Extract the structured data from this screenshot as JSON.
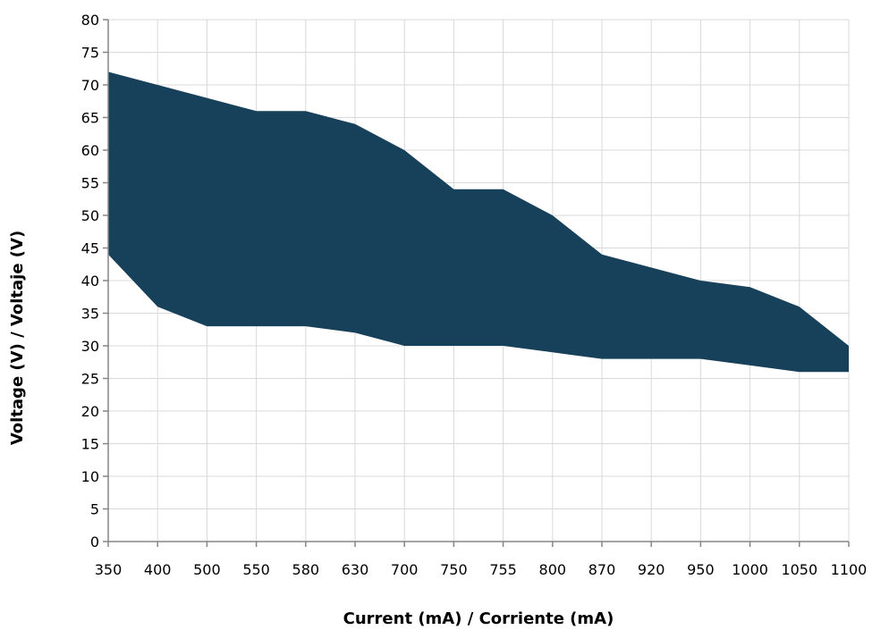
{
  "chart_data": {
    "type": "area",
    "categories": [
      "350",
      "400",
      "500",
      "550",
      "580",
      "630",
      "700",
      "750",
      "755",
      "800",
      "870",
      "920",
      "950",
      "1000",
      "1050",
      "1100"
    ],
    "series": [
      {
        "values_upper": [
          72,
          70,
          68,
          66,
          66,
          64,
          60,
          54,
          54,
          50,
          44,
          42,
          40,
          39,
          36,
          30
        ],
        "values_lower": [
          44,
          36,
          33,
          33,
          33,
          32,
          30,
          30,
          30,
          29,
          28,
          28,
          28,
          27,
          26,
          26
        ]
      }
    ],
    "xlabel": "Current (mA) / Corriente (mA)",
    "ylabel": "Voltage (V) / Voltaje (V)",
    "ylim": [
      0,
      80
    ],
    "yticks": [
      0,
      5,
      10,
      15,
      20,
      25,
      30,
      35,
      40,
      45,
      50,
      55,
      60,
      65,
      70,
      75,
      80
    ],
    "grid": true,
    "fill_color": "#17405a",
    "grid_color": "#d9d9d9",
    "axis_color": "#868686"
  }
}
